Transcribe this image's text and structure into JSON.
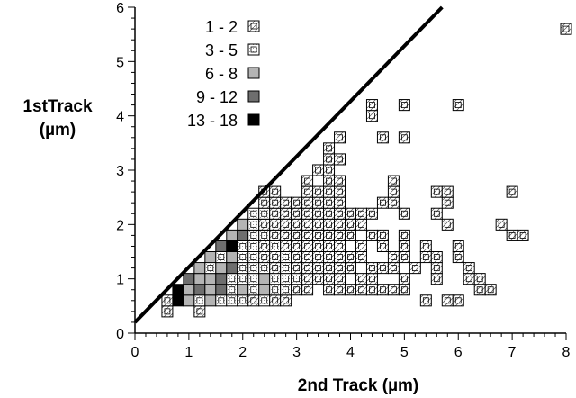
{
  "chart_data": {
    "type": "heatmap",
    "xlabel": "2nd Track  (µm)",
    "ylabel": [
      "1stTrack",
      "(µm)"
    ],
    "xlim": [
      0,
      8
    ],
    "ylim": [
      0,
      6
    ],
    "x_ticks": [
      "0",
      "1",
      "2",
      "3",
      "4",
      "5",
      "6",
      "7",
      "8"
    ],
    "y_ticks": [
      "0",
      "1",
      "2",
      "3",
      "4",
      "5",
      "6"
    ],
    "bin_width": 0.2,
    "diagonal_line": {
      "x": [
        0,
        5.7
      ],
      "y": [
        0.2,
        6.0
      ]
    },
    "legend": [
      {
        "label": "1 - 2",
        "level": 1
      },
      {
        "label": "3 - 5",
        "level": 2
      },
      {
        "label": "6 - 8",
        "level": 3
      },
      {
        "label": "9 - 12",
        "level": 4
      },
      {
        "label": "13 - 18",
        "level": 5
      }
    ],
    "level_fills": [
      "#ffffff",
      "#ffffff",
      "#ffffff",
      "#b4b4b4",
      "#6e6e6e",
      "#000000"
    ],
    "cells": [
      [
        0.6,
        0.4,
        1
      ],
      [
        1.2,
        0.4,
        1
      ],
      [
        0.6,
        0.6,
        1
      ],
      [
        0.8,
        0.6,
        5
      ],
      [
        1.0,
        0.6,
        3
      ],
      [
        1.2,
        0.6,
        2
      ],
      [
        1.4,
        0.6,
        3
      ],
      [
        1.6,
        0.6,
        2
      ],
      [
        1.8,
        0.6,
        2
      ],
      [
        2.0,
        0.6,
        2
      ],
      [
        2.2,
        0.6,
        1
      ],
      [
        2.4,
        0.6,
        2
      ],
      [
        2.6,
        0.6,
        1
      ],
      [
        2.8,
        0.6,
        1
      ],
      [
        3.6,
        0.8,
        1
      ],
      [
        3.8,
        0.8,
        1
      ],
      [
        4.0,
        0.8,
        1
      ],
      [
        4.2,
        0.8,
        1
      ],
      [
        4.4,
        0.8,
        1
      ],
      [
        4.6,
        0.8,
        1
      ],
      [
        4.8,
        0.8,
        1
      ],
      [
        5.0,
        0.8,
        1
      ],
      [
        5.4,
        0.6,
        1
      ],
      [
        5.8,
        0.6,
        1
      ],
      [
        6.0,
        0.6,
        1
      ],
      [
        6.4,
        0.8,
        1
      ],
      [
        6.6,
        0.8,
        1
      ],
      [
        0.8,
        0.8,
        5
      ],
      [
        1.0,
        0.8,
        3
      ],
      [
        1.2,
        0.8,
        4
      ],
      [
        1.4,
        0.8,
        3
      ],
      [
        1.6,
        0.8,
        4
      ],
      [
        1.8,
        0.8,
        2
      ],
      [
        2.0,
        0.8,
        3
      ],
      [
        2.2,
        0.8,
        2
      ],
      [
        2.4,
        0.8,
        3
      ],
      [
        2.6,
        0.8,
        2
      ],
      [
        2.8,
        0.8,
        2
      ],
      [
        3.0,
        0.8,
        1
      ],
      [
        3.2,
        0.8,
        1
      ],
      [
        1.0,
        1.0,
        4
      ],
      [
        1.2,
        1.0,
        3
      ],
      [
        1.4,
        1.0,
        3
      ],
      [
        1.6,
        1.0,
        4
      ],
      [
        1.8,
        1.0,
        2
      ],
      [
        2.0,
        1.0,
        2
      ],
      [
        2.2,
        1.0,
        2
      ],
      [
        2.4,
        1.0,
        3
      ],
      [
        2.6,
        1.0,
        2
      ],
      [
        2.8,
        1.0,
        2
      ],
      [
        3.0,
        1.0,
        2
      ],
      [
        3.2,
        1.0,
        1
      ],
      [
        3.4,
        1.0,
        1
      ],
      [
        3.6,
        1.0,
        1
      ],
      [
        3.8,
        1.0,
        1
      ],
      [
        4.2,
        1.0,
        1
      ],
      [
        4.4,
        1.0,
        1
      ],
      [
        5.0,
        1.0,
        1
      ],
      [
        5.6,
        1.0,
        1
      ],
      [
        6.2,
        1.0,
        1
      ],
      [
        6.4,
        1.0,
        1
      ],
      [
        1.2,
        1.2,
        3
      ],
      [
        1.4,
        1.2,
        2
      ],
      [
        1.6,
        1.2,
        3
      ],
      [
        1.8,
        1.2,
        4
      ],
      [
        2.0,
        1.2,
        2
      ],
      [
        2.2,
        1.2,
        2
      ],
      [
        2.4,
        1.2,
        2
      ],
      [
        2.6,
        1.2,
        1
      ],
      [
        2.8,
        1.2,
        2
      ],
      [
        3.0,
        1.2,
        1
      ],
      [
        3.2,
        1.2,
        1
      ],
      [
        3.4,
        1.2,
        1
      ],
      [
        3.6,
        1.2,
        1
      ],
      [
        3.8,
        1.2,
        1
      ],
      [
        4.0,
        1.2,
        1
      ],
      [
        4.4,
        1.2,
        1
      ],
      [
        4.6,
        1.2,
        1
      ],
      [
        4.8,
        1.2,
        1
      ],
      [
        5.2,
        1.2,
        1
      ],
      [
        5.6,
        1.2,
        1
      ],
      [
        6.2,
        1.2,
        1
      ],
      [
        1.4,
        1.4,
        3
      ],
      [
        1.6,
        1.4,
        2
      ],
      [
        1.8,
        1.4,
        3
      ],
      [
        2.0,
        1.4,
        2
      ],
      [
        2.2,
        1.4,
        2
      ],
      [
        2.4,
        1.4,
        1
      ],
      [
        2.6,
        1.4,
        1
      ],
      [
        2.8,
        1.4,
        2
      ],
      [
        3.0,
        1.4,
        1
      ],
      [
        3.2,
        1.4,
        1
      ],
      [
        3.4,
        1.4,
        1
      ],
      [
        3.6,
        1.4,
        1
      ],
      [
        3.8,
        1.4,
        1
      ],
      [
        4.0,
        1.4,
        1
      ],
      [
        4.2,
        1.4,
        1
      ],
      [
        4.8,
        1.4,
        1
      ],
      [
        5.0,
        1.4,
        1
      ],
      [
        5.4,
        1.4,
        1
      ],
      [
        5.6,
        1.4,
        1
      ],
      [
        6.0,
        1.4,
        1
      ],
      [
        1.6,
        1.6,
        4
      ],
      [
        1.8,
        1.6,
        5
      ],
      [
        2.0,
        1.6,
        2
      ],
      [
        2.2,
        1.6,
        2
      ],
      [
        2.4,
        1.6,
        1
      ],
      [
        2.6,
        1.6,
        2
      ],
      [
        2.8,
        1.6,
        1
      ],
      [
        3.0,
        1.6,
        1
      ],
      [
        3.2,
        1.6,
        1
      ],
      [
        3.4,
        1.6,
        1
      ],
      [
        3.6,
        1.6,
        1
      ],
      [
        3.8,
        1.6,
        1
      ],
      [
        4.2,
        1.6,
        1
      ],
      [
        4.6,
        1.6,
        1
      ],
      [
        5.0,
        1.6,
        1
      ],
      [
        5.4,
        1.6,
        1
      ],
      [
        6.0,
        1.6,
        1
      ],
      [
        1.8,
        1.8,
        3
      ],
      [
        2.0,
        1.8,
        4
      ],
      [
        2.2,
        1.8,
        2
      ],
      [
        2.4,
        1.8,
        2
      ],
      [
        2.6,
        1.8,
        1
      ],
      [
        2.8,
        1.8,
        1
      ],
      [
        3.0,
        1.8,
        1
      ],
      [
        3.2,
        1.8,
        1
      ],
      [
        3.4,
        1.8,
        1
      ],
      [
        3.6,
        1.8,
        1
      ],
      [
        3.8,
        1.8,
        1
      ],
      [
        4.0,
        1.8,
        1
      ],
      [
        4.4,
        1.8,
        1
      ],
      [
        4.6,
        1.8,
        1
      ],
      [
        5.0,
        1.8,
        1
      ],
      [
        7.0,
        1.8,
        1
      ],
      [
        7.2,
        1.8,
        1
      ],
      [
        2.0,
        2.0,
        3
      ],
      [
        2.2,
        2.0,
        2
      ],
      [
        2.4,
        2.0,
        1
      ],
      [
        2.6,
        2.0,
        1
      ],
      [
        2.8,
        2.0,
        1
      ],
      [
        3.0,
        2.0,
        1
      ],
      [
        3.2,
        2.0,
        1
      ],
      [
        3.4,
        2.0,
        1
      ],
      [
        3.6,
        2.0,
        1
      ],
      [
        3.8,
        2.0,
        1
      ],
      [
        4.0,
        2.0,
        1
      ],
      [
        4.2,
        2.0,
        1
      ],
      [
        5.8,
        2.0,
        1
      ],
      [
        6.8,
        2.0,
        1
      ],
      [
        2.2,
        2.2,
        2
      ],
      [
        2.4,
        2.2,
        2
      ],
      [
        2.6,
        2.2,
        1
      ],
      [
        2.8,
        2.2,
        1
      ],
      [
        3.0,
        2.2,
        1
      ],
      [
        3.2,
        2.2,
        1
      ],
      [
        3.4,
        2.2,
        1
      ],
      [
        3.6,
        2.2,
        1
      ],
      [
        3.8,
        2.2,
        1
      ],
      [
        4.0,
        2.2,
        1
      ],
      [
        4.2,
        2.2,
        1
      ],
      [
        4.4,
        2.2,
        1
      ],
      [
        5.0,
        2.2,
        1
      ],
      [
        5.6,
        2.2,
        1
      ],
      [
        2.4,
        2.4,
        1
      ],
      [
        2.6,
        2.4,
        1
      ],
      [
        2.8,
        2.4,
        1
      ],
      [
        3.0,
        2.4,
        1
      ],
      [
        3.2,
        2.4,
        1
      ],
      [
        3.4,
        2.4,
        1
      ],
      [
        3.6,
        2.4,
        1
      ],
      [
        3.8,
        2.4,
        1
      ],
      [
        4.6,
        2.4,
        1
      ],
      [
        4.8,
        2.4,
        1
      ],
      [
        5.8,
        2.4,
        1
      ],
      [
        2.4,
        2.6,
        1
      ],
      [
        2.6,
        2.6,
        1
      ],
      [
        3.2,
        2.6,
        1
      ],
      [
        3.4,
        2.6,
        1
      ],
      [
        3.6,
        2.6,
        1
      ],
      [
        3.8,
        2.6,
        1
      ],
      [
        4.8,
        2.6,
        1
      ],
      [
        5.6,
        2.6,
        1
      ],
      [
        5.8,
        2.6,
        1
      ],
      [
        7.0,
        2.6,
        1
      ],
      [
        3.2,
        2.8,
        1
      ],
      [
        3.6,
        2.8,
        1
      ],
      [
        3.8,
        2.8,
        1
      ],
      [
        4.8,
        2.8,
        1
      ],
      [
        3.4,
        3.0,
        1
      ],
      [
        3.6,
        3.0,
        1
      ],
      [
        3.6,
        3.2,
        1
      ],
      [
        3.8,
        3.2,
        1
      ],
      [
        3.6,
        3.4,
        1
      ],
      [
        3.8,
        3.6,
        1
      ],
      [
        4.6,
        3.6,
        1
      ],
      [
        5.0,
        3.6,
        1
      ],
      [
        4.4,
        4.0,
        1
      ],
      [
        4.4,
        4.2,
        1
      ],
      [
        5.0,
        4.2,
        1
      ],
      [
        6.0,
        4.2,
        1
      ],
      [
        8.0,
        5.6,
        1
      ]
    ]
  }
}
